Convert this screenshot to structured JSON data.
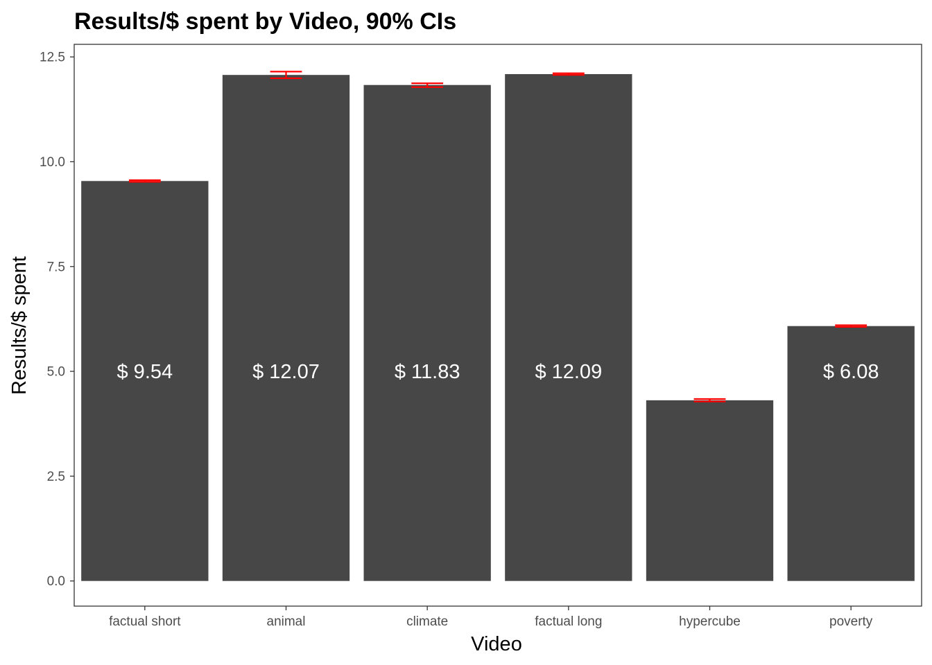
{
  "chart_data": {
    "type": "bar",
    "title": "Results/$ spent by Video, 90% CIs",
    "xlabel": "Video",
    "ylabel": "Results/$ spent",
    "categories": [
      "factual short",
      "animal",
      "climate",
      "factual long",
      "hypercube",
      "poverty"
    ],
    "values": [
      9.54,
      12.07,
      11.83,
      12.09,
      4.31,
      6.08
    ],
    "data_labels": [
      "$ 9.54",
      "$ 12.07",
      "$ 11.83",
      "$ 12.09",
      "",
      "$ 6.08"
    ],
    "ci_low": [
      9.52,
      11.99,
      11.78,
      12.07,
      4.28,
      6.06
    ],
    "ci_high": [
      9.56,
      12.15,
      11.87,
      12.11,
      4.34,
      6.1
    ],
    "ylim": [
      -0.6,
      12.8
    ],
    "yticks": [
      0.0,
      2.5,
      5.0,
      7.5,
      10.0,
      12.5
    ],
    "ytick_labels": [
      "0.0",
      "2.5",
      "5.0",
      "7.5",
      "10.0",
      "12.5"
    ],
    "data_label_y": 5.0,
    "grid": false,
    "legend": "none",
    "colors": {
      "bar": "#474747",
      "errorbar": "#ff0000",
      "panel_border": "#333333",
      "axis_text": "#4d4d4d"
    }
  }
}
